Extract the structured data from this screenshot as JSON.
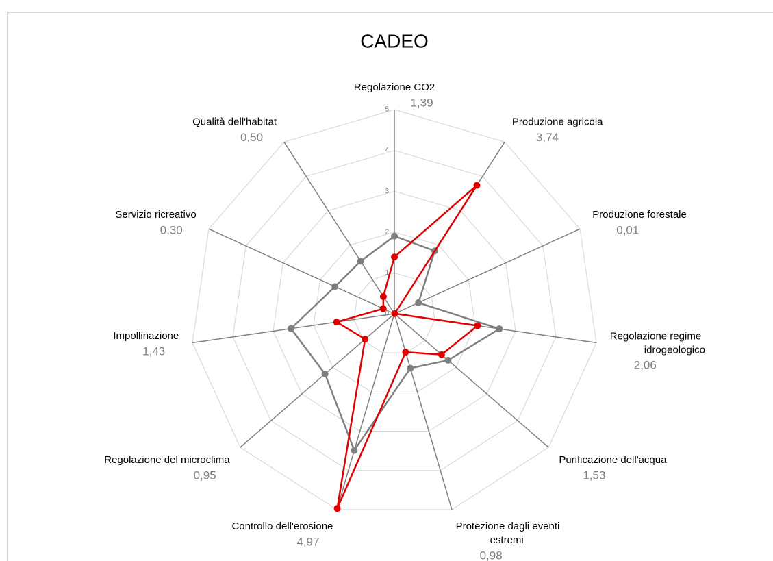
{
  "chart_data": {
    "type": "radar",
    "title": "CADEO",
    "categories": [
      "Regolazione CO2",
      "Produzione agricola",
      "Produzione forestale",
      "Regolazione regime idrogeologico",
      "Purificazione dell'acqua",
      "Protezione dagli eventi estremi",
      "Controllo dell'erosione",
      "Regolazione del microclima",
      "Impollinazione",
      "Servizio ricreativo",
      "Qualità dell'habitat"
    ],
    "series": [
      {
        "color": "#7f7f7f",
        "values": [
          1.9,
          1.83,
          0.65,
          2.6,
          1.74,
          1.39,
          3.49,
          2.25,
          2.56,
          1.6,
          1.53
        ]
      },
      {
        "color": "#e00000",
        "values": [
          1.39,
          3.74,
          0.01,
          2.06,
          1.53,
          0.98,
          4.97,
          0.95,
          1.43,
          0.3,
          0.5
        ],
        "value_labels": [
          "1,39",
          "3,74",
          "0,01",
          "2,06",
          "1,53",
          "0,98",
          "4,97",
          "0,95",
          "1,43",
          "0,30",
          "0,50"
        ]
      }
    ],
    "rlim": [
      0,
      5
    ],
    "rticks": [
      0,
      1,
      2,
      3,
      4,
      5
    ],
    "grid": true
  }
}
